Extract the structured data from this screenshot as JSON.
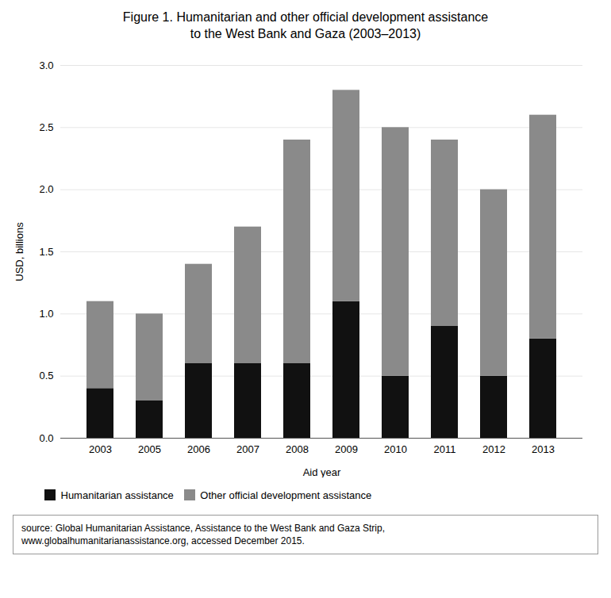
{
  "chart_data": {
    "type": "bar",
    "stacked": true,
    "title": "Figure 1. Humanitarian and other official development assistance\nto the West Bank and Gaza (2003–2013)",
    "xlabel": "Aid year",
    "ylabel": "USD, billions",
    "categories": [
      "2003",
      "2005",
      "2006",
      "2007",
      "2008",
      "2009",
      "2010",
      "2011",
      "2012",
      "2013"
    ],
    "series": [
      {
        "name": "Humanitarian assistance",
        "color": "#111111",
        "values": [
          0.4,
          0.3,
          0.6,
          0.6,
          0.6,
          1.1,
          0.5,
          0.9,
          0.5,
          0.8
        ]
      },
      {
        "name": "Other official development assistance",
        "color": "#8a8a8a",
        "values": [
          0.7,
          0.7,
          0.8,
          1.1,
          1.8,
          1.7,
          2.0,
          1.5,
          1.5,
          1.8
        ]
      }
    ],
    "ylim": [
      0,
      3.0
    ],
    "yticks": [
      0,
      0.5,
      1,
      1.5,
      2,
      2.5,
      3
    ],
    "grid": true,
    "legend": "bottom",
    "annotations": [
      "source: Global Humanitarian Assistance, Assistance to the West Bank and Gaza Strip,\nwww.globalhumanitarianassistance.org, accessed December 2015."
    ]
  }
}
